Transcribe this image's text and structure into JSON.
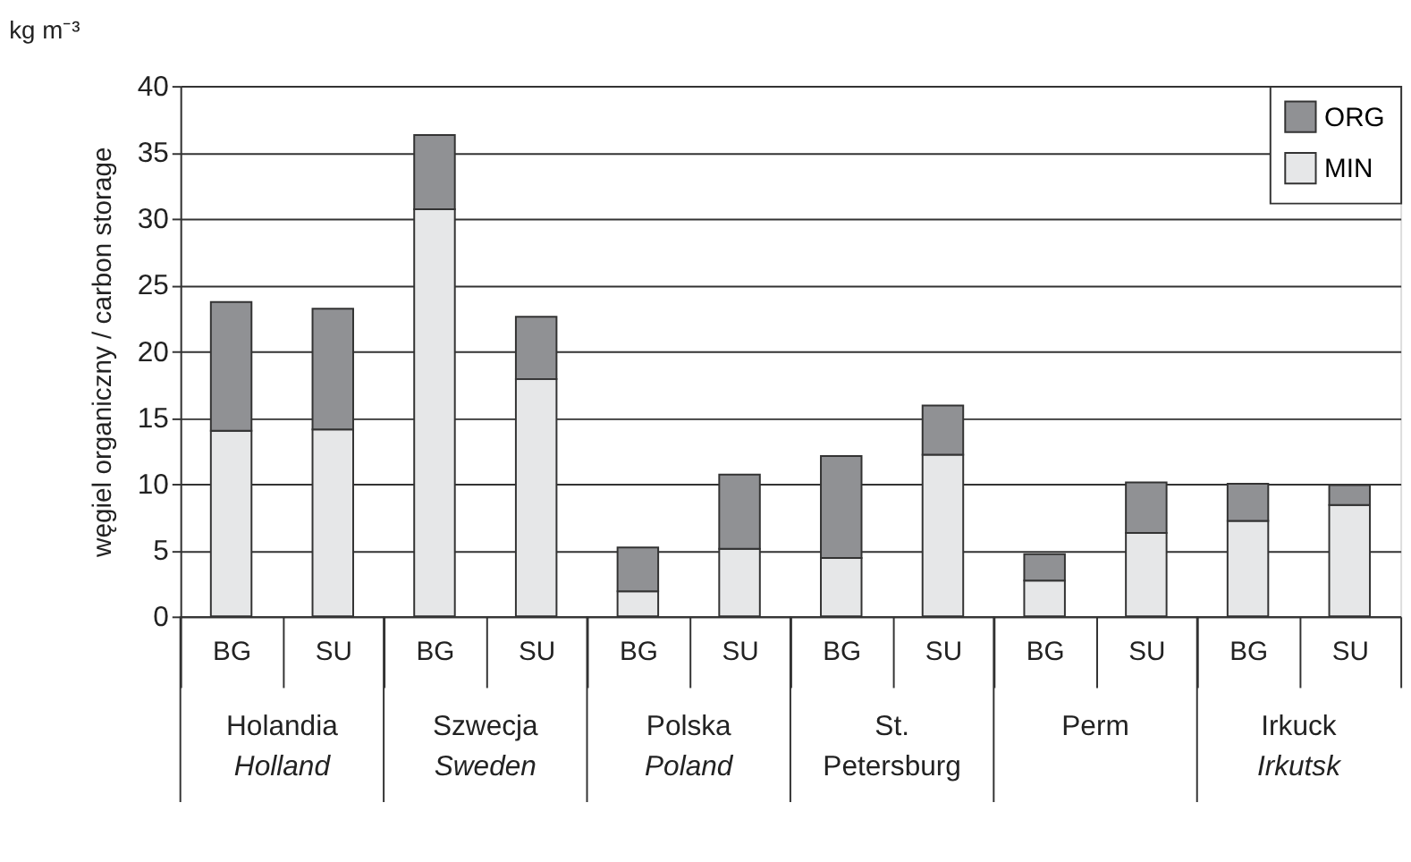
{
  "chart_data": {
    "type": "bar",
    "stacked": true,
    "subtitle": "kg m⁻³",
    "ylabel": "węgiel organiczny / carbon storage",
    "categories": [
      "BG",
      "SU",
      "BG",
      "SU",
      "BG",
      "SU",
      "BG",
      "SU",
      "BG",
      "SU",
      "BG",
      "SU"
    ],
    "series": [
      {
        "name": "MIN",
        "color": "#e6e7e8",
        "values": [
          14.0,
          14.1,
          30.7,
          17.9,
          1.9,
          5.1,
          4.4,
          12.2,
          2.7,
          6.3,
          7.2,
          8.4
        ]
      },
      {
        "name": "ORG",
        "color": "#909194",
        "values": [
          9.7,
          9.1,
          5.6,
          4.7,
          3.3,
          5.6,
          7.7,
          3.7,
          2.0,
          3.8,
          2.8,
          1.5
        ]
      }
    ],
    "annotations": [
      "Holandia\nHolland",
      "Szwecja\nSweden",
      "Polska\nPoland",
      "St. Petersburg",
      "Perm",
      "Irkuck\nIrkutsk"
    ],
    "ylim": [
      0,
      40
    ],
    "yticks": [
      0,
      5,
      10,
      15,
      20,
      25,
      30,
      35,
      40
    ],
    "grid": "y",
    "legend": "top right"
  }
}
